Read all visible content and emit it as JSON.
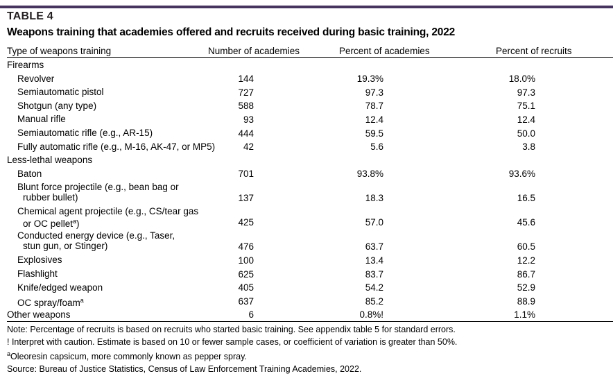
{
  "table_label": "TABLE 4",
  "title": "Weapons training that academies offered and recruits received during basic training, 2022",
  "columns": [
    "Type of weapons training",
    "Number of academies",
    "Percent of academies",
    "Percent of recruits"
  ],
  "rows": [
    {
      "type": "category",
      "label": "Firearms"
    },
    {
      "type": "item",
      "label": "Revolver",
      "n": "144",
      "pa": "19.3%",
      "pr": "18.0%"
    },
    {
      "type": "item",
      "label": "Semiautomatic pistol",
      "n": "727",
      "pa": "97.3",
      "pr": "97.3"
    },
    {
      "type": "item",
      "label": "Shotgun (any type)",
      "n": "588",
      "pa": "78.7",
      "pr": "75.1"
    },
    {
      "type": "item",
      "label": "Manual rifle",
      "n": "93",
      "pa": "12.4",
      "pr": "12.4"
    },
    {
      "type": "item",
      "label": "Semiautomatic rifle (e.g., AR-15)",
      "n": "444",
      "pa": "59.5",
      "pr": "50.0"
    },
    {
      "type": "item",
      "label": "Fully automatic rifle (e.g., M-16, AK-47, or MP5)",
      "n": "42",
      "pa": "5.6",
      "pr": "3.8"
    },
    {
      "type": "category",
      "label": "Less-lethal weapons"
    },
    {
      "type": "item",
      "label": "Baton",
      "n": "701",
      "pa": "93.8%",
      "pr": "93.6%"
    },
    {
      "type": "item",
      "label": "Blunt force projectile (e.g., bean bag or",
      "label2": "rubber bullet)",
      "n": "137",
      "pa": "18.3",
      "pr": "16.5"
    },
    {
      "type": "item",
      "label": "Chemical agent projectile (e.g., CS/tear gas",
      "label2": "or OC pellet",
      "sup": "a",
      "label2_after": ")",
      "n": "425",
      "pa": "57.0",
      "pr": "45.6"
    },
    {
      "type": "item",
      "label": "Conducted energy device (e.g., Taser,",
      "label2": "stun gun, or Stinger)",
      "n": "476",
      "pa": "63.7",
      "pr": "60.5"
    },
    {
      "type": "item",
      "label": "Explosives",
      "n": "100",
      "pa": "13.4",
      "pr": "12.2"
    },
    {
      "type": "item",
      "label": "Flashlight",
      "n": "625",
      "pa": "83.7",
      "pr": "86.7"
    },
    {
      "type": "item",
      "label": "Knife/edged weapon",
      "n": "405",
      "pa": "54.2",
      "pr": "52.9"
    },
    {
      "type": "item",
      "label": "OC spray/foam",
      "sup": "a",
      "n": "637",
      "pa": "85.2",
      "pr": "88.9"
    },
    {
      "type": "category",
      "label": "Other weapons",
      "n": "6",
      "pa": "0.8%!",
      "pr": "1.1%"
    }
  ],
  "notes": {
    "note": "Note: Percentage of recruits is based on recruits who started basic training. See appendix table 5 for standard errors.",
    "caution": "! Interpret with caution. Estimate is based on 10 or fewer sample cases, or coefficient of variation is greater than 50%.",
    "footnote_marker": "a",
    "footnote": "Oleoresin capsicum, more commonly known as pepper spray.",
    "source": "Source: Bureau of Justice Statistics, Census of Law Enforcement Training Academies, 2022."
  },
  "colors": {
    "title_bar": "#46345f"
  }
}
